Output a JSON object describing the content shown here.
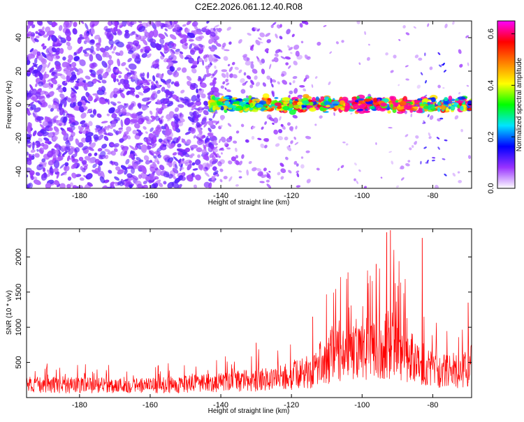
{
  "page_title": "C2E2.2026.061.12.40.R08",
  "chart_data": [
    {
      "type": "heatmap",
      "name": "spectrogram",
      "title": "C2E2.2026.061.12.40.R08",
      "xlabel": "Height of straight line (km)",
      "ylabel": "Frequency (Hz)",
      "xlim": [
        -195,
        -69
      ],
      "ylim": [
        -50,
        50
      ],
      "x_ticks": [
        -180,
        -160,
        -140,
        -120,
        -100,
        -80
      ],
      "y_ticks": [
        -40,
        -20,
        0,
        20,
        40
      ],
      "colorbar": {
        "label": "Normalized spectral amplitude",
        "range": [
          0.0,
          0.65
        ],
        "ticks": [
          0.0,
          0.2,
          0.4,
          0.6
        ],
        "colormap": [
          "#ffffff",
          "#9933ff",
          "#0000ff",
          "#00e5ff",
          "#00ff00",
          "#ffff00",
          "#ff8000",
          "#ff0000",
          "#ff00ff"
        ]
      },
      "signal_band": {
        "center_hz": 0,
        "half_width_hz": 6,
        "onset_km": -143,
        "peak_amplitude": 0.62,
        "peak_region_km": [
          -106,
          -83
        ]
      },
      "noise_dense_until_km": -143,
      "noise_sparse_until_km": -115
    },
    {
      "type": "line",
      "name": "snr",
      "xlabel": "Height of straight line (km)",
      "ylabel": "SNR (10 * v/v)",
      "xlim": [
        -195,
        -69
      ],
      "ylim": [
        0,
        2400
      ],
      "x_ticks": [
        -180,
        -160,
        -140,
        -120,
        -100,
        -80
      ],
      "y_ticks": [
        500,
        1000,
        1500,
        2000
      ],
      "color": "#ff0000",
      "profile": {
        "km": [
          -195,
          -160,
          -145,
          -130,
          -120,
          -114,
          -112,
          -108,
          -104,
          -100,
          -96,
          -93,
          -90,
          -87,
          -84,
          -82,
          -78,
          -74,
          -70,
          -69
        ],
        "mean": [
          180,
          170,
          200,
          250,
          300,
          380,
          480,
          600,
          640,
          620,
          700,
          760,
          720,
          600,
          520,
          460,
          380,
          360,
          420,
          500
        ]
      },
      "notable_peaks": [
        {
          "km": -130,
          "value": 780
        },
        {
          "km": -114,
          "value": 1150
        },
        {
          "km": -104,
          "value": 1780
        },
        {
          "km": -96,
          "value": 1900
        },
        {
          "km": -93,
          "value": 2350
        },
        {
          "km": -92,
          "value": 2380
        },
        {
          "km": -91,
          "value": 2100
        },
        {
          "km": -83,
          "value": 2270
        },
        {
          "km": -70,
          "value": 1350
        }
      ]
    }
  ]
}
